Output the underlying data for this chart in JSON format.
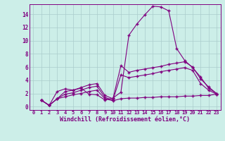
{
  "title": "",
  "xlabel": "Windchill (Refroidissement éolien,°C)",
  "background_color": "#cceee8",
  "line_color": "#800080",
  "grid_color": "#aacccc",
  "xlim": [
    -0.5,
    23.5
  ],
  "ylim": [
    -0.5,
    15.5
  ],
  "xticks": [
    0,
    1,
    2,
    3,
    4,
    5,
    6,
    7,
    8,
    9,
    10,
    11,
    12,
    13,
    14,
    15,
    16,
    17,
    18,
    19,
    20,
    21,
    22,
    23
  ],
  "yticks": [
    0,
    2,
    4,
    6,
    8,
    10,
    12,
    14
  ],
  "series": [
    [
      1.0,
      0.2,
      2.3,
      2.7,
      2.5,
      2.8,
      1.9,
      1.8,
      1.0,
      1.3,
      2.2,
      10.8,
      12.5,
      13.9,
      15.2,
      15.1,
      14.5,
      8.8,
      7.0,
      5.9,
      4.5,
      2.8,
      2.0
    ],
    [
      1.0,
      0.2,
      1.2,
      2.3,
      2.5,
      2.9,
      3.3,
      3.5,
      1.7,
      1.2,
      6.2,
      5.2,
      5.5,
      5.7,
      5.9,
      6.1,
      6.4,
      6.6,
      6.8,
      6.0,
      4.2,
      3.0,
      2.0
    ],
    [
      1.0,
      0.2,
      1.2,
      1.9,
      2.1,
      2.5,
      2.9,
      3.1,
      1.4,
      1.0,
      4.8,
      4.4,
      4.6,
      4.8,
      5.0,
      5.3,
      5.5,
      5.7,
      5.9,
      5.5,
      3.5,
      2.5,
      1.9
    ],
    [
      1.0,
      0.2,
      1.2,
      1.5,
      1.8,
      2.0,
      2.3,
      2.5,
      1.2,
      0.9,
      1.2,
      1.3,
      1.3,
      1.4,
      1.4,
      1.5,
      1.5,
      1.5,
      1.6,
      1.6,
      1.7,
      1.7,
      1.9
    ]
  ],
  "x_values": [
    1,
    2,
    3,
    4,
    5,
    6,
    7,
    8,
    9,
    10,
    11,
    12,
    13,
    14,
    15,
    16,
    17,
    18,
    19,
    20,
    21,
    22,
    23
  ]
}
